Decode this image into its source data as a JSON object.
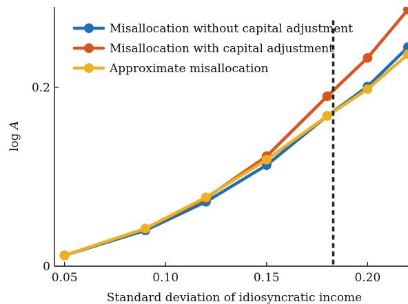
{
  "chart_data": {
    "type": "line",
    "xlabel": "Standard deviation of idiosyncratic income",
    "ylabel": "log A",
    "xlim": [
      0.045,
      0.22
    ],
    "ylim": [
      0,
      0.29
    ],
    "xticks": [
      0.05,
      0.1,
      0.15,
      0.2
    ],
    "xtick_labels": [
      "0.05",
      "0.10",
      "0.15",
      "0.20"
    ],
    "yticks": [
      0,
      0.2
    ],
    "ytick_labels": [
      "0",
      "0.2"
    ],
    "vertical_line": {
      "x": 0.183,
      "style": "dashed",
      "color": "#222222"
    },
    "legend_position": "top-left",
    "grid": false,
    "series": [
      {
        "name": "Misallocation without capital adjustment",
        "color": "#1F6FB5",
        "x": [
          0.05,
          0.09,
          0.12,
          0.15,
          0.18,
          0.2,
          0.22
        ],
        "y": [
          0.012,
          0.04,
          0.072,
          0.113,
          0.168,
          0.201,
          0.245
        ]
      },
      {
        "name": "Misallocation with capital adjustment",
        "color": "#D9541E",
        "x": [
          0.05,
          0.09,
          0.12,
          0.15,
          0.18,
          0.2,
          0.22
        ],
        "y": [
          0.012,
          0.042,
          0.076,
          0.123,
          0.19,
          0.233,
          0.287
        ]
      },
      {
        "name": "Approximate misallocation",
        "color": "#EDB120",
        "x": [
          0.05,
          0.09,
          0.12,
          0.15,
          0.18,
          0.2,
          0.22
        ],
        "y": [
          0.012,
          0.042,
          0.077,
          0.119,
          0.168,
          0.198,
          0.237
        ]
      }
    ]
  }
}
